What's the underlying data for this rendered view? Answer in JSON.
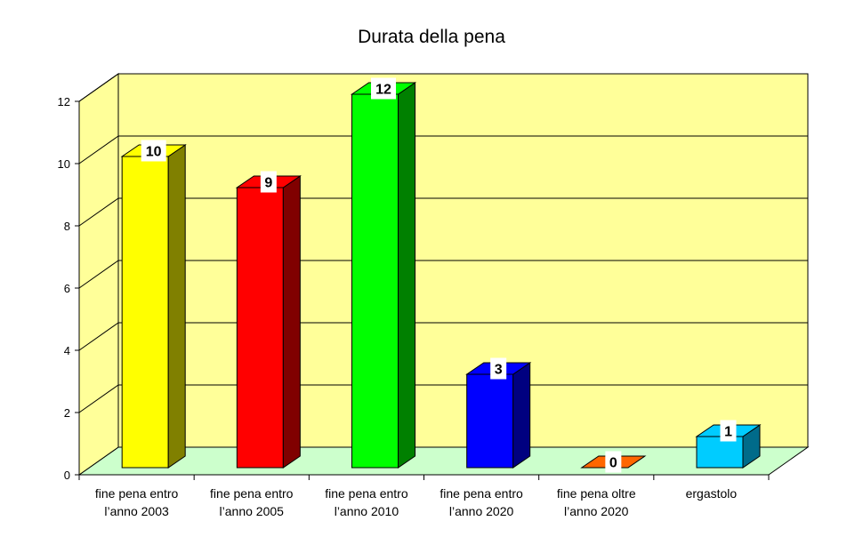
{
  "chart_data": {
    "type": "bar",
    "title": "Durata della pena",
    "xlabel": "",
    "ylabel": "",
    "ylim": [
      0,
      12
    ],
    "yticks": [
      0,
      2,
      4,
      6,
      8,
      10,
      12
    ],
    "grid": true,
    "categories": [
      [
        "fine pena entro",
        "l’anno 2003"
      ],
      [
        "fine pena entro",
        "l’anno 2005"
      ],
      [
        "fine pena entro",
        "l’anno 2010"
      ],
      [
        "fine pena entro",
        "l’anno 2020"
      ],
      [
        "fine pena oltre",
        "l’anno 2020"
      ],
      [
        "ergastolo"
      ]
    ],
    "values": [
      10,
      9,
      12,
      3,
      0,
      1
    ],
    "colors": [
      {
        "front": "#FFFF00",
        "side": "#808000"
      },
      {
        "front": "#FF0000",
        "side": "#800000"
      },
      {
        "front": "#00FF00",
        "side": "#008000"
      },
      {
        "front": "#0000FF",
        "side": "#000080"
      },
      {
        "front": "#FF6600",
        "side": "#993300"
      },
      {
        "front": "#00CCFF",
        "side": "#006B8A"
      }
    ],
    "wall_color": "#FFFF99",
    "floor_color": "#CCFFCC"
  }
}
